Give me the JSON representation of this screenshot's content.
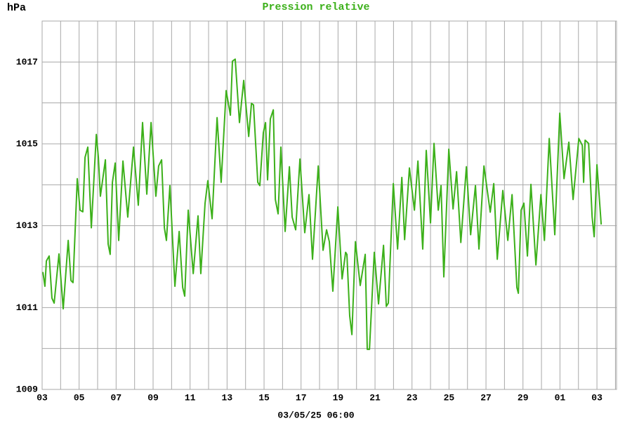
{
  "chart_data": {
    "type": "line",
    "title": "Pression relative",
    "y_unit": "hPa",
    "x_label": "03/05/25 06:00",
    "xlim": [
      0,
      31.06
    ],
    "xticks": [
      {
        "value": 0,
        "label": "03"
      },
      {
        "value": 2,
        "label": "05"
      },
      {
        "value": 4,
        "label": "07"
      },
      {
        "value": 6,
        "label": "09"
      },
      {
        "value": 8,
        "label": "11"
      },
      {
        "value": 10,
        "label": "13"
      },
      {
        "value": 12,
        "label": "15"
      },
      {
        "value": 14,
        "label": "17"
      },
      {
        "value": 16,
        "label": "19"
      },
      {
        "value": 18,
        "label": "21"
      },
      {
        "value": 20,
        "label": "23"
      },
      {
        "value": 22,
        "label": "25"
      },
      {
        "value": 24,
        "label": "27"
      },
      {
        "value": 26,
        "label": "29"
      },
      {
        "value": 28,
        "label": "01"
      },
      {
        "value": 30,
        "label": "03"
      }
    ],
    "minor_xticks": [
      1,
      3,
      5,
      7,
      9,
      11,
      13,
      15,
      17,
      19,
      21,
      23,
      25,
      27,
      29,
      31
    ],
    "ylim": [
      1009,
      1018
    ],
    "yticks": [
      1009,
      1011,
      1013,
      1015,
      1017
    ],
    "minor_yticks": [
      1010,
      1012,
      1014,
      1016,
      1018
    ],
    "grid": true,
    "series": [
      {
        "name": "Pression relative",
        "color": "#3cb01a",
        "x": [
          0.04,
          0.15,
          0.23,
          0.38,
          0.53,
          0.65,
          0.91,
          1.14,
          1.41,
          1.56,
          1.67,
          1.9,
          2.05,
          2.2,
          2.32,
          2.47,
          2.66,
          2.93,
          3.04,
          3.15,
          3.42,
          3.57,
          3.68,
          3.8,
          3.95,
          4.14,
          4.37,
          4.63,
          4.94,
          5.2,
          5.43,
          5.66,
          5.89,
          6.15,
          6.3,
          6.46,
          6.61,
          6.72,
          6.91,
          7.18,
          7.41,
          7.6,
          7.71,
          7.9,
          8.17,
          8.43,
          8.58,
          8.81,
          8.96,
          9.19,
          9.46,
          9.68,
          9.95,
          10.18,
          10.29,
          10.44,
          10.67,
          10.9,
          11.17,
          11.32,
          11.43,
          11.66,
          11.77,
          11.96,
          12.08,
          12.19,
          12.34,
          12.5,
          12.61,
          12.76,
          12.91,
          13.14,
          13.37,
          13.52,
          13.71,
          13.94,
          14.2,
          14.43,
          14.62,
          14.93,
          15.19,
          15.38,
          15.53,
          15.72,
          15.99,
          16.22,
          16.41,
          16.48,
          16.63,
          16.75,
          16.94,
          17.2,
          17.47,
          17.58,
          17.7,
          17.96,
          18.19,
          18.46,
          18.61,
          18.72,
          18.99,
          19.22,
          19.45,
          19.6,
          19.86,
          20.13,
          20.32,
          20.58,
          20.77,
          21.0,
          21.19,
          21.42,
          21.57,
          21.72,
          21.99,
          22.22,
          22.41,
          22.64,
          22.94,
          23.17,
          23.43,
          23.62,
          23.89,
          24.23,
          24.42,
          24.61,
          24.91,
          25.18,
          25.41,
          25.67,
          25.75,
          25.9,
          26.05,
          26.24,
          26.43,
          26.7,
          26.97,
          27.16,
          27.42,
          27.72,
          27.99,
          28.22,
          28.48,
          28.71,
          29.02,
          29.21,
          29.28,
          29.36,
          29.55,
          29.74,
          29.85,
          30.0,
          30.23
        ],
        "values": [
          1011.87,
          1011.52,
          1012.14,
          1012.26,
          1011.23,
          1011.11,
          1012.31,
          1010.97,
          1012.64,
          1011.66,
          1011.61,
          1014.15,
          1013.38,
          1013.34,
          1014.67,
          1014.92,
          1012.95,
          1015.23,
          1014.67,
          1013.72,
          1014.61,
          1012.55,
          1012.3,
          1014.06,
          1014.53,
          1012.64,
          1014.58,
          1013.21,
          1014.92,
          1013.5,
          1015.52,
          1013.77,
          1015.52,
          1013.72,
          1014.46,
          1014.61,
          1012.95,
          1012.64,
          1013.98,
          1011.52,
          1012.86,
          1011.49,
          1011.28,
          1013.38,
          1011.83,
          1013.24,
          1011.83,
          1013.55,
          1014.1,
          1013.17,
          1015.64,
          1014.06,
          1016.3,
          1015.7,
          1017.02,
          1017.07,
          1015.52,
          1016.55,
          1015.18,
          1015.99,
          1015.95,
          1014.06,
          1013.98,
          1015.27,
          1015.52,
          1014.12,
          1015.61,
          1015.83,
          1013.64,
          1013.29,
          1014.92,
          1012.86,
          1014.44,
          1013.21,
          1012.9,
          1014.63,
          1012.83,
          1013.76,
          1012.18,
          1014.46,
          1012.4,
          1012.9,
          1012.61,
          1011.4,
          1013.46,
          1011.7,
          1012.35,
          1012.3,
          1010.8,
          1010.34,
          1012.61,
          1011.54,
          1012.3,
          1009.98,
          1009.98,
          1012.35,
          1011.09,
          1012.52,
          1011.03,
          1011.11,
          1014.03,
          1012.43,
          1014.18,
          1012.66,
          1014.41,
          1013.38,
          1014.58,
          1012.43,
          1014.84,
          1013.07,
          1015.01,
          1013.38,
          1013.98,
          1011.75,
          1014.87,
          1013.41,
          1014.32,
          1012.59,
          1014.44,
          1012.78,
          1013.98,
          1012.43,
          1014.46,
          1013.33,
          1014.03,
          1012.18,
          1013.86,
          1012.64,
          1013.76,
          1011.49,
          1011.35,
          1013.38,
          1013.55,
          1012.26,
          1014.01,
          1012.04,
          1013.76,
          1012.64,
          1015.13,
          1012.78,
          1015.75,
          1014.15,
          1015.04,
          1013.64,
          1015.13,
          1014.96,
          1014.06,
          1015.09,
          1015.01,
          1013.21,
          1012.73,
          1014.49,
          1013.03
        ]
      }
    ]
  }
}
